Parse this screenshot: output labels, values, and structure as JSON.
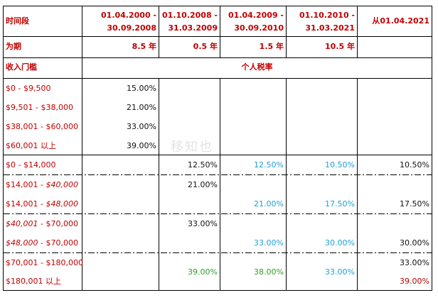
{
  "header": {
    "period_label": "时间段",
    "periods": [
      {
        "line1": "01.04.2000 -",
        "line2": "30.09.2008"
      },
      {
        "line1": "01.10.2008 -",
        "line2": "31.03.2009"
      },
      {
        "line1": "01.04.2009 -",
        "line2": "30.09.2010"
      },
      {
        "line1": "01.10.2010 -",
        "line2": "31.03.2021"
      },
      {
        "line1": "从01.04.2021",
        "line2": ""
      }
    ],
    "duration_label": "为期",
    "durations": [
      "8.5 年",
      "0.5 年",
      "1.5 年",
      "10.5 年",
      ""
    ],
    "income_label": "收入门槛",
    "rate_label": "个人税率"
  },
  "rows": [
    {
      "label": "$0 - $9,500",
      "label_style": "normal",
      "cells": [
        "15.00%",
        "",
        "",
        "",
        ""
      ]
    },
    {
      "label": "$9,501 - $38,000",
      "label_style": "normal",
      "cells": [
        "21.00%",
        "",
        "",
        "",
        ""
      ]
    },
    {
      "label": "$38,001 - $60,000",
      "label_style": "normal",
      "cells": [
        "33.00%",
        "",
        "",
        "",
        ""
      ]
    },
    {
      "label": "$60,001 以上",
      "label_style": "normal",
      "cells": [
        "39.00%",
        "",
        "",
        "",
        ""
      ]
    },
    {
      "label": "$0 - $14,000",
      "label_style": "normal",
      "cells": [
        "",
        "12.50%",
        "12.50%",
        "10.50%",
        "10.50%"
      ]
    },
    {
      "label": "$14,001 - $40,000",
      "label_style": "italic-tail",
      "cells": [
        "",
        "21.00%",
        "",
        "",
        ""
      ]
    },
    {
      "label": "$14,001 - $48,000",
      "label_style": "italic-tail",
      "cells": [
        "",
        "",
        "21.00%",
        "17.50%",
        "17.50%"
      ]
    },
    {
      "label": "$40,001 - $70,000",
      "label_style": "italic-head",
      "cells": [
        "",
        "33.00%",
        "",
        "",
        ""
      ]
    },
    {
      "label": "$48,000 - $70,000",
      "label_style": "italic-head",
      "cells": [
        "",
        "",
        "33.00%",
        "30.00%",
        "30.00%"
      ]
    },
    {
      "label": "$70,001 - $180,000",
      "label_style": "normal",
      "cells": [
        "",
        "",
        "",
        "",
        "33.00%"
      ]
    },
    {
      "label": "$180,001 以上",
      "label_style": "normal",
      "cells": [
        "",
        "",
        "",
        "",
        "39.00%"
      ]
    },
    {
      "label": "",
      "label_style": "normal",
      "cells": [
        "",
        "39.00%",
        "38.00%",
        "33.00%",
        ""
      ]
    }
  ],
  "label_parts": {
    "r5_a": "$14,001 - ",
    "r5_b": "$40,000",
    "r6_a": "$14,001 - ",
    "r6_b": "$48,000",
    "r7_a": "$40,001",
    "r7_b": " - $70,000",
    "r8_a": "$48,000",
    "r8_b": " - $70,000"
  },
  "watermark": "移知也",
  "colors": {
    "red": "#c00000",
    "cyan": "#1fa0d8",
    "green": "#2f9e2f",
    "black": "#111111"
  }
}
